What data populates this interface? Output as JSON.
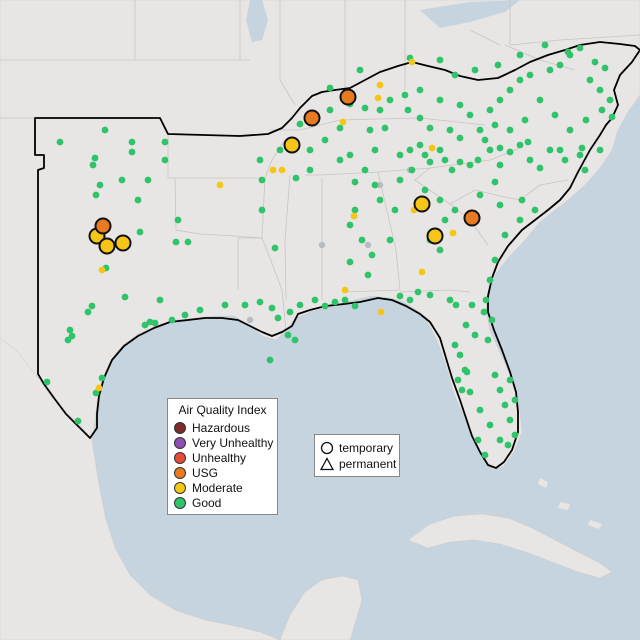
{
  "legend": {
    "title": "Air Quality Index",
    "items": [
      {
        "label": "Hazardous",
        "color": "#7e2b2b"
      },
      {
        "label": "Very Unhealthy",
        "color": "#8f4fb0"
      },
      {
        "label": "Unhealthy",
        "color": "#e84b37"
      },
      {
        "label": "USG",
        "color": "#e87a22"
      },
      {
        "label": "Moderate",
        "color": "#f5c518"
      },
      {
        "label": "Good",
        "color": "#2fc36a"
      }
    ]
  },
  "monitor_types": {
    "temporary": "temporary",
    "permanent": "permanent"
  },
  "colors": {
    "water": "#c5d4df",
    "land": "#e8e6e4",
    "border": "#000000",
    "nodata": "#b8bcc2"
  }
}
